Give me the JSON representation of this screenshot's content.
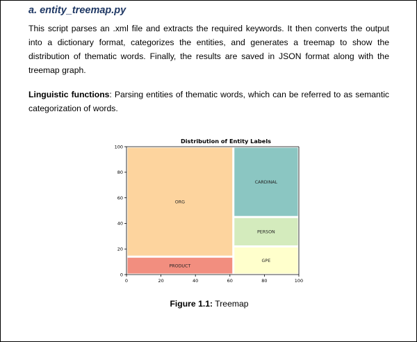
{
  "section": {
    "heading": "a. entity_treemap.py",
    "paragraph1": "This script parses an .xml file and extracts the required keywords. It then converts the output into a dictionary format, categorizes the entities, and generates a treemap to show the distribution of thematic words. Finally, the results are saved in JSON format along with the treemap graph.",
    "paragraph2_term": "Linguistic functions",
    "paragraph2_rest": ": Parsing entities of thematic words, which can be referred to as semantic categorization of words."
  },
  "figure": {
    "caption_label": "Figure 1.1:",
    "caption_text": " Treemap"
  },
  "chart_data": {
    "type": "treemap",
    "title": "Distribution of Entity Labels",
    "xlim": [
      0,
      100
    ],
    "ylim": [
      0,
      100
    ],
    "xticks": [
      0,
      20,
      40,
      60,
      80,
      100
    ],
    "yticks": [
      0,
      20,
      40,
      60,
      80,
      100
    ],
    "grid": false,
    "rects": [
      {
        "label": "ORG",
        "x0": 0,
        "y0": 14,
        "x1": 62,
        "y1": 100,
        "color": "#fdd49e"
      },
      {
        "label": "PRODUCT",
        "x0": 0,
        "y0": 0,
        "x1": 62,
        "y1": 14,
        "color": "#f28e7f"
      },
      {
        "label": "CARDINAL",
        "x0": 62,
        "y0": 45,
        "x1": 100,
        "y1": 100,
        "color": "#8bc6c2"
      },
      {
        "label": "PERSON",
        "x0": 62,
        "y0": 22,
        "x1": 100,
        "y1": 45,
        "color": "#d4ebbd"
      },
      {
        "label": "GPE",
        "x0": 62,
        "y0": 0,
        "x1": 100,
        "y1": 22,
        "color": "#ffffcc"
      }
    ]
  }
}
